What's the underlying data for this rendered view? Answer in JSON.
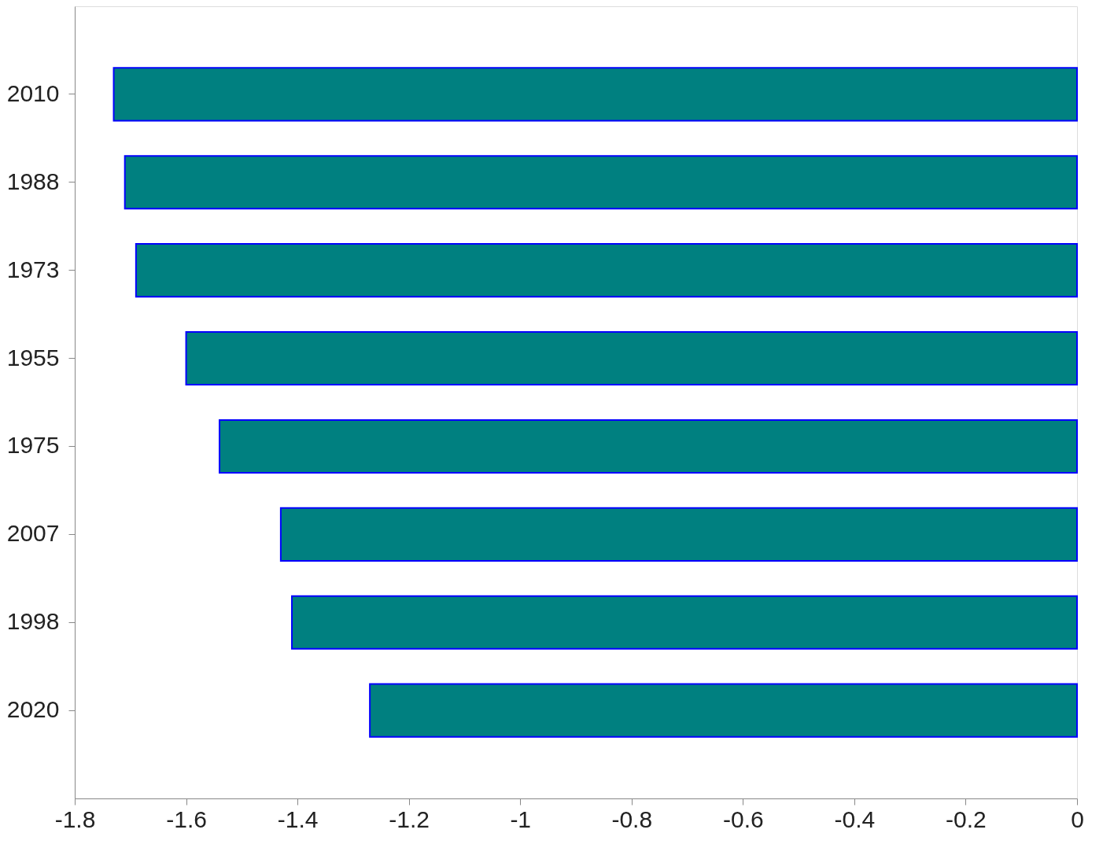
{
  "chart_data": {
    "type": "bar",
    "orientation": "horizontal",
    "categories": [
      "2010",
      "1988",
      "1973",
      "1955",
      "1975",
      "2007",
      "1998",
      "2020"
    ],
    "values": [
      -1.73,
      -1.71,
      -1.69,
      -1.6,
      -1.54,
      -1.43,
      -1.41,
      -1.27
    ],
    "color": "#008080",
    "xlim": [
      -1.8,
      0
    ],
    "xticks": [
      -1.8,
      -1.6,
      -1.4,
      -1.2,
      -1,
      -0.8,
      -0.6,
      -0.4,
      -0.2,
      0
    ],
    "grid": false
  }
}
